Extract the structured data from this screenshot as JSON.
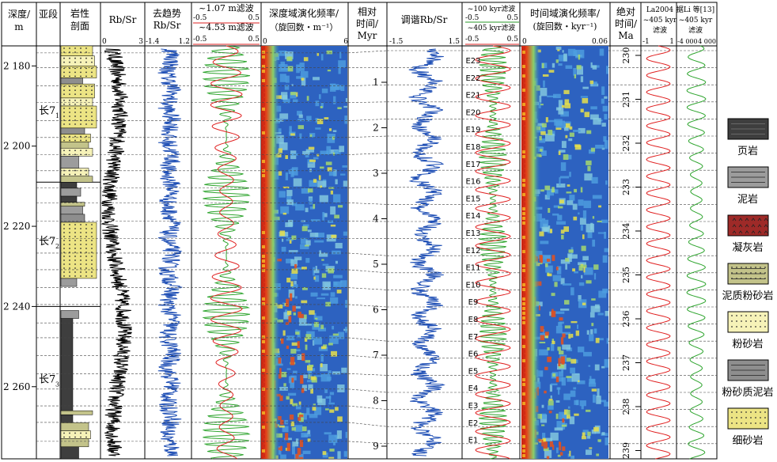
{
  "chart_data": {
    "type": "line",
    "title": "",
    "headers": {
      "depth": [
        "深度/",
        "m"
      ],
      "substage": "亚段",
      "lith": [
        "岩性",
        "剖面"
      ],
      "rbsr": "Rb/Sr",
      "detrend": [
        "去趋势",
        "Rb/Sr"
      ],
      "filter": [
        "~1.07 m滤波",
        "~4.53 m滤波"
      ],
      "depth_evo": [
        "深度域演化频率/",
        "（旋回数・m⁻¹）"
      ],
      "reltime": [
        "相对",
        "时间/",
        "Myr"
      ],
      "tuned": "调谐Rb/Sr",
      "kyr_filter": [
        "~100 kyr滤波",
        "~405 kyr滤波"
      ],
      "time_evo": [
        "时间域演化频率/",
        "(旋回数・kyr⁻¹)"
      ],
      "abstime": [
        "绝对",
        "时间/",
        "Ma"
      ],
      "la2004": [
        "La2004",
        "~405 kyr",
        "滤波"
      ],
      "li": [
        "据Li 等[13]",
        "~405 kyr",
        "滤波"
      ]
    },
    "axes": {
      "depth": {
        "ticks": [
          2180,
          2200,
          2220,
          2240,
          2260
        ],
        "labels": [
          "2 180",
          "2 200",
          "2 220",
          "2 240",
          "2 260"
        ],
        "range": [
          2175,
          2278
        ]
      },
      "rbsr": {
        "range": [
          0,
          3
        ],
        "ticks": [
          "0",
          "3"
        ]
      },
      "detrend": {
        "range": [
          -1.4,
          1.2
        ],
        "ticks": [
          "-1.4",
          "1.2"
        ]
      },
      "filter_top": {
        "range": [
          -0.5,
          0.5
        ],
        "ticks": [
          "-0.5",
          "0.5"
        ]
      },
      "filter_bottom": {
        "range": [
          -0.5,
          0.5
        ],
        "ticks": [
          "-0.5",
          "0.5"
        ]
      },
      "depth_freq": {
        "range": [
          0,
          6
        ],
        "ticks": [
          "0",
          "6"
        ]
      },
      "tuned": {
        "range": [
          -1.5,
          1.5
        ],
        "ticks": [
          "-1.5",
          "1.5"
        ]
      },
      "kyr_top": {
        "range": [
          -0.5,
          0.5
        ],
        "ticks": [
          "-0.5",
          "0.5"
        ]
      },
      "kyr_bottom": {
        "range": [
          -0.5,
          0.5
        ],
        "ticks": [
          "-0.5",
          "0.5"
        ]
      },
      "time_freq": {
        "range": [
          0,
          0.06
        ],
        "ticks": [
          "0",
          "0.06"
        ]
      },
      "reltime": {
        "ticks": [
          1,
          2,
          3,
          4,
          5,
          6,
          7,
          8,
          9
        ]
      },
      "abstime": {
        "ticks": [
          230,
          231,
          232,
          233,
          234,
          235,
          236,
          237,
          238,
          239
        ]
      },
      "la2004": {
        "range": [
          -1,
          1
        ],
        "ticks": [
          "-1",
          "1"
        ]
      },
      "li": {
        "range": [
          -4000,
          4000
        ],
        "ticks": [
          "-4 000",
          "4 000"
        ]
      }
    },
    "substages": [
      {
        "label": "长7",
        "sub": "1",
        "top": 2175,
        "bottom": 2209
      },
      {
        "label": "长7",
        "sub": "2",
        "top": 2209,
        "bottom": 2240
      },
      {
        "label": "长7",
        "sub": "3",
        "top": 2240,
        "bottom": 2278
      }
    ],
    "lithology_column": [
      {
        "type": "细砂岩",
        "top": 2175.0,
        "bottom": 2177.5,
        "w": 0.8
      },
      {
        "type": "粉砂岩",
        "top": 2177.5,
        "bottom": 2180.0,
        "w": 0.85
      },
      {
        "type": "细砂岩",
        "top": 2180.0,
        "bottom": 2183.0,
        "w": 0.9
      },
      {
        "type": "粉砂质泥岩",
        "top": 2183.0,
        "bottom": 2184.5,
        "w": 0.55
      },
      {
        "type": "细砂岩",
        "top": 2184.5,
        "bottom": 2188.0,
        "w": 0.85
      },
      {
        "type": "粉砂岩",
        "top": 2188.0,
        "bottom": 2190.0,
        "w": 0.8
      },
      {
        "type": "细砂岩",
        "top": 2190.0,
        "bottom": 2195.5,
        "w": 0.9
      },
      {
        "type": "粉砂质泥岩",
        "top": 2195.5,
        "bottom": 2197.0,
        "w": 0.6
      },
      {
        "type": "细砂岩",
        "top": 2197.0,
        "bottom": 2199.0,
        "w": 0.75
      },
      {
        "type": "泥质粉砂岩",
        "top": 2199.0,
        "bottom": 2200.5,
        "w": 0.7
      },
      {
        "type": "粉砂岩",
        "top": 2200.5,
        "bottom": 2202.5,
        "w": 0.8
      },
      {
        "type": "泥岩",
        "top": 2202.5,
        "bottom": 2205.5,
        "w": 0.45
      },
      {
        "type": "粉砂岩",
        "top": 2205.5,
        "bottom": 2207.5,
        "w": 0.7
      },
      {
        "type": "泥质粉砂岩",
        "top": 2207.5,
        "bottom": 2209.0,
        "w": 0.8
      },
      {
        "type": "页岩",
        "top": 2209.0,
        "bottom": 2210.5,
        "w": 0.4
      },
      {
        "type": "泥岩",
        "top": 2210.5,
        "bottom": 2212.5,
        "w": 0.5
      },
      {
        "type": "页岩",
        "top": 2212.5,
        "bottom": 2214.0,
        "w": 0.4
      },
      {
        "type": "泥质粉砂岩",
        "top": 2214.0,
        "bottom": 2215.0,
        "w": 0.6
      },
      {
        "type": "泥岩",
        "top": 2215.0,
        "bottom": 2217.0,
        "w": 0.55
      },
      {
        "type": "粉砂质泥岩",
        "top": 2217.0,
        "bottom": 2219.0,
        "w": 0.6
      },
      {
        "type": "细砂岩",
        "top": 2219.0,
        "bottom": 2233.0,
        "w": 0.9
      },
      {
        "type": "泥岩",
        "top": 2233.0,
        "bottom": 2235.0,
        "w": 0.4
      },
      {
        "type": "泥岩",
        "top": 2241.0,
        "bottom": 2243.0,
        "w": 0.45
      },
      {
        "type": "页岩",
        "top": 2243.0,
        "bottom": 2266.0,
        "w": 0.3
      },
      {
        "type": "泥质粉砂岩",
        "top": 2266.0,
        "bottom": 2267.0,
        "w": 0.8
      },
      {
        "type": "页岩",
        "top": 2267.0,
        "bottom": 2269.0,
        "w": 0.3
      },
      {
        "type": "泥质粉砂岩",
        "top": 2269.0,
        "bottom": 2271.0,
        "w": 0.7
      },
      {
        "type": "粉砂岩",
        "top": 2271.0,
        "bottom": 2273.0,
        "w": 0.75
      },
      {
        "type": "泥质粉砂岩",
        "top": 2273.0,
        "bottom": 2275.0,
        "w": 0.7
      },
      {
        "type": "页岩",
        "top": 2275.0,
        "bottom": 2278.0,
        "w": 0.45
      }
    ],
    "eccentricity_cycles": [
      "E23",
      "E22",
      "E21",
      "E20",
      "E19",
      "E18",
      "E17",
      "E16",
      "E15",
      "E14",
      "E13",
      "E12",
      "E11",
      "E10",
      "E9",
      "E8",
      "E7",
      "E6",
      "E5",
      "E4",
      "E3",
      "E2",
      "E1"
    ],
    "legend": [
      {
        "name": "页岩",
        "color": "#3e3e3e"
      },
      {
        "name": "泥岩",
        "color": "#9c9c9c"
      },
      {
        "name": "凝灰岩",
        "color": "#9e2a28"
      },
      {
        "name": "泥质粉砂岩",
        "color": "#c3c38a"
      },
      {
        "name": "粉砂岩",
        "color": "#f6f2b8"
      },
      {
        "name": "粉砂质泥岩",
        "color": "#8e8e8e"
      },
      {
        "name": "细砂岩",
        "color": "#ece484"
      }
    ]
  }
}
